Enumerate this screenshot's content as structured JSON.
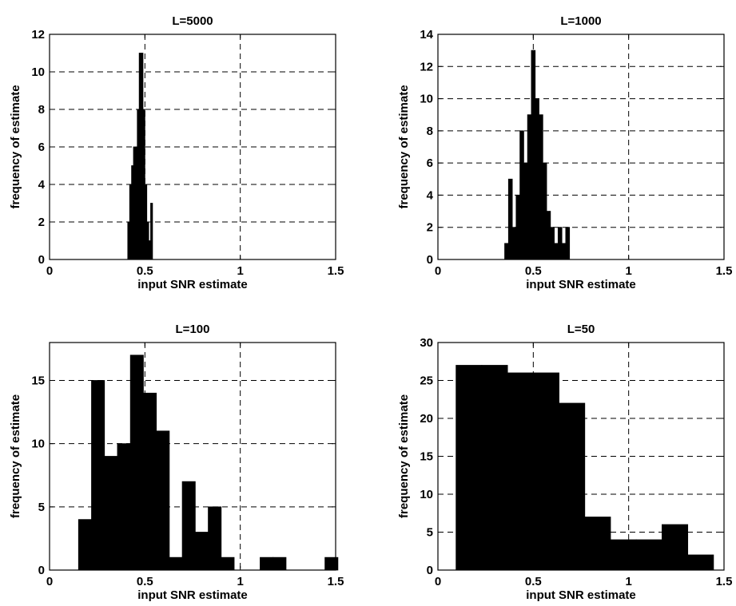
{
  "chart_data": [
    {
      "type": "bar",
      "title": "L=5000",
      "xlabel": "input SNR estimate",
      "ylabel": "frequency of estimate",
      "xlim": [
        0,
        1.5
      ],
      "ylim": [
        0,
        12
      ],
      "xticks": [
        "0",
        "0.5",
        "1",
        "1.5"
      ],
      "yticks": [
        "0",
        "2",
        "4",
        "6",
        "8",
        "10",
        "12"
      ],
      "grid": true,
      "bin_width": 0.01,
      "bin_starts": [
        0.41,
        0.42,
        0.43,
        0.44,
        0.45,
        0.46,
        0.47,
        0.48,
        0.49,
        0.5,
        0.51,
        0.52,
        0.53
      ],
      "values": [
        2,
        4,
        5,
        6,
        6,
        8,
        11,
        11,
        8,
        4,
        2,
        1,
        3
      ]
    },
    {
      "type": "bar",
      "title": "L=1000",
      "xlabel": "input SNR estimate",
      "ylabel": "frequency of estimate",
      "xlim": [
        0,
        1.5
      ],
      "ylim": [
        0,
        14
      ],
      "xticks": [
        "0",
        "0.5",
        "1",
        "1.5"
      ],
      "yticks": [
        "0",
        "2",
        "4",
        "6",
        "8",
        "10",
        "12",
        "14"
      ],
      "grid": true,
      "bin_width": 0.02,
      "bin_starts": [
        0.35,
        0.37,
        0.39,
        0.41,
        0.43,
        0.45,
        0.47,
        0.49,
        0.51,
        0.53,
        0.55,
        0.57,
        0.59,
        0.61,
        0.63,
        0.65,
        0.67
      ],
      "values": [
        1,
        5,
        2,
        4,
        8,
        6,
        9,
        13,
        10,
        9,
        6,
        3,
        2,
        1,
        2,
        1,
        2
      ]
    },
    {
      "type": "bar",
      "title": "L=100",
      "xlabel": "input SNR estimate",
      "ylabel": "frequency of estimate",
      "xlim": [
        0,
        1.5
      ],
      "ylim": [
        0,
        18
      ],
      "xticks": [
        "0",
        "0.5",
        "1",
        "1.5"
      ],
      "yticks": [
        "0",
        "5",
        "10",
        "15"
      ],
      "grid": true,
      "bin_width": 0.068,
      "bin_starts": [
        0.152,
        0.22,
        0.288,
        0.356,
        0.424,
        0.492,
        0.56,
        0.628,
        0.696,
        0.764,
        0.832,
        0.9,
        0.968,
        1.036,
        1.104,
        1.172,
        1.24,
        1.308,
        1.376,
        1.444
      ],
      "values": [
        4,
        15,
        9,
        10,
        17,
        14,
        11,
        1,
        7,
        3,
        5,
        1,
        0,
        0,
        1,
        1,
        0,
        0,
        0,
        1
      ]
    },
    {
      "type": "bar",
      "title": "L=50",
      "xlabel": "input SNR estimate",
      "ylabel": "frequency of estimate",
      "xlim": [
        0,
        1.5
      ],
      "ylim": [
        0,
        30
      ],
      "xticks": [
        "0",
        "0.5",
        "1",
        "1.5"
      ],
      "yticks": [
        "0",
        "5",
        "10",
        "15",
        "20",
        "25",
        "30"
      ],
      "grid": true,
      "bin_width": 0.135,
      "bin_starts": [
        0.095,
        0.23,
        0.365,
        0.5,
        0.635,
        0.77,
        0.905,
        1.04,
        1.175,
        1.31
      ],
      "values": [
        27,
        27,
        26,
        26,
        22,
        7,
        4,
        4,
        6,
        2
      ]
    }
  ]
}
